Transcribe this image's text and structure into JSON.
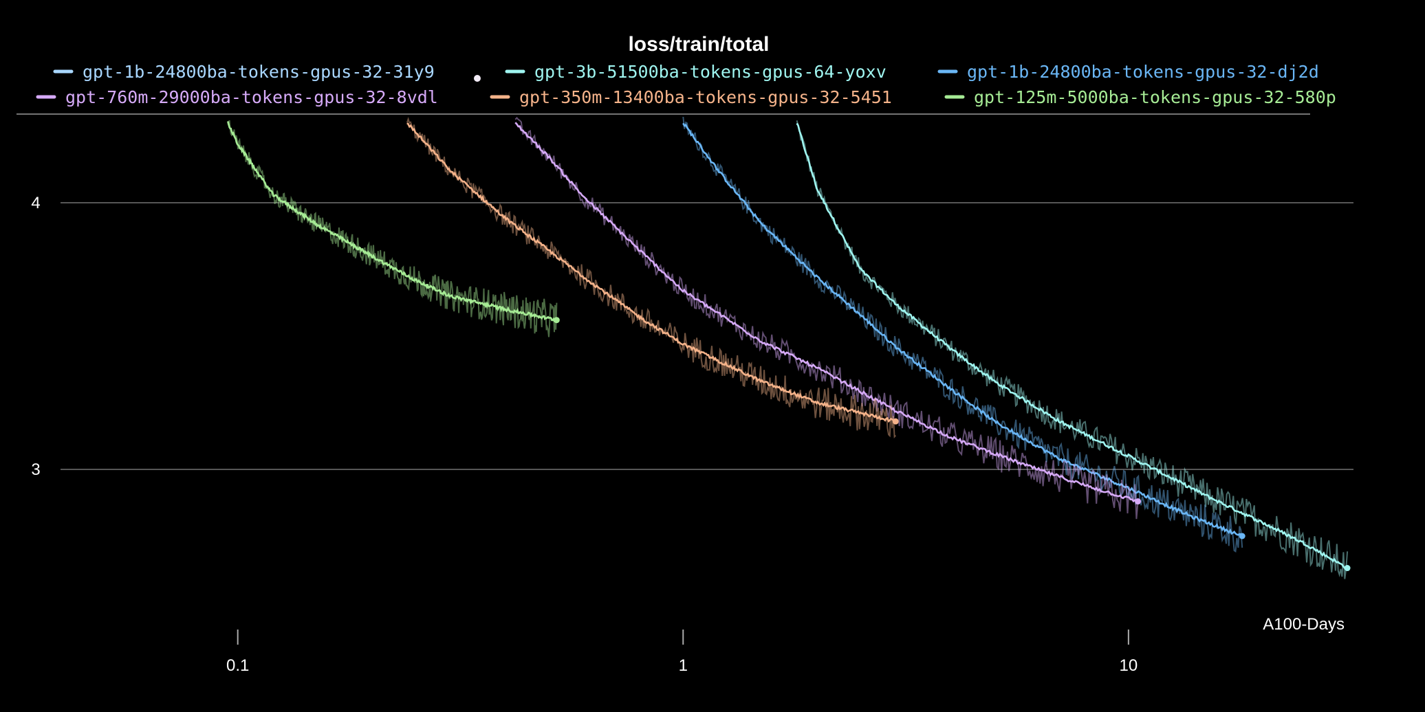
{
  "chart_data": {
    "type": "line",
    "title": "loss/train/total",
    "xlabel": "A100-Days",
    "ylabel": "",
    "x_scale": "log",
    "xlim": [
      0.04,
      32
    ],
    "ylim": [
      2.45,
      4.32
    ],
    "x_ticks": [
      {
        "value": 0.1,
        "label": "0.1"
      },
      {
        "value": 1,
        "label": "1"
      },
      {
        "value": 10,
        "label": "10"
      }
    ],
    "y_ticks": [
      {
        "value": 3,
        "label": "3"
      },
      {
        "value": 4,
        "label": "4"
      }
    ],
    "grid": "horizontal",
    "legend_position": "top",
    "series": [
      {
        "name": "gpt-1b-24800ba-tokens-gpus-32-31y9",
        "color": "#a9d7ff",
        "x": [],
        "y": []
      },
      {
        "name": "gpt-3b-51500ba-tokens-gpus-64-yoxv",
        "color": "#9ff5f0",
        "x": [
          1.8,
          2.0,
          2.5,
          3.0,
          4.0,
          5.0,
          7.0,
          10.0,
          15.0,
          20.0,
          25.0,
          31.0
        ],
        "y": [
          4.3,
          4.05,
          3.75,
          3.62,
          3.45,
          3.33,
          3.18,
          3.05,
          2.9,
          2.8,
          2.72,
          2.63
        ]
      },
      {
        "name": "gpt-1b-24800ba-tokens-gpus-32-dj2d",
        "color": "#6ab6f5",
        "x": [
          1.0,
          1.2,
          1.5,
          2.0,
          2.5,
          3.0,
          4.0,
          5.0,
          7.0,
          10.0,
          14.0,
          18.0
        ],
        "y": [
          4.3,
          4.12,
          3.92,
          3.72,
          3.58,
          3.46,
          3.3,
          3.18,
          3.04,
          2.93,
          2.82,
          2.75
        ]
      },
      {
        "name": "gpt-760m-29000ba-tokens-gpus-32-8vdl",
        "color": "#d6aaf8",
        "x": [
          0.42,
          0.5,
          0.6,
          0.8,
          1.0,
          1.5,
          2.0,
          3.0,
          4.0,
          6.0,
          8.0,
          10.5
        ],
        "y": [
          4.3,
          4.17,
          4.02,
          3.82,
          3.67,
          3.48,
          3.38,
          3.22,
          3.12,
          3.01,
          2.94,
          2.88
        ]
      },
      {
        "name": "gpt-350m-13400ba-tokens-gpus-32-5451",
        "color": "#f5b38a",
        "x": [
          0.24,
          0.3,
          0.4,
          0.5,
          0.6,
          0.8,
          1.0,
          1.5,
          2.0,
          3.0
        ],
        "y": [
          4.3,
          4.12,
          3.94,
          3.82,
          3.72,
          3.57,
          3.47,
          3.33,
          3.25,
          3.18
        ]
      },
      {
        "name": "gpt-125m-5000ba-tokens-gpus-32-580p",
        "color": "#a6eb95",
        "x": [
          0.095,
          0.1,
          0.12,
          0.15,
          0.2,
          0.25,
          0.3,
          0.4,
          0.52
        ],
        "y": [
          4.3,
          4.22,
          4.03,
          3.92,
          3.8,
          3.71,
          3.65,
          3.6,
          3.56
        ]
      }
    ]
  }
}
